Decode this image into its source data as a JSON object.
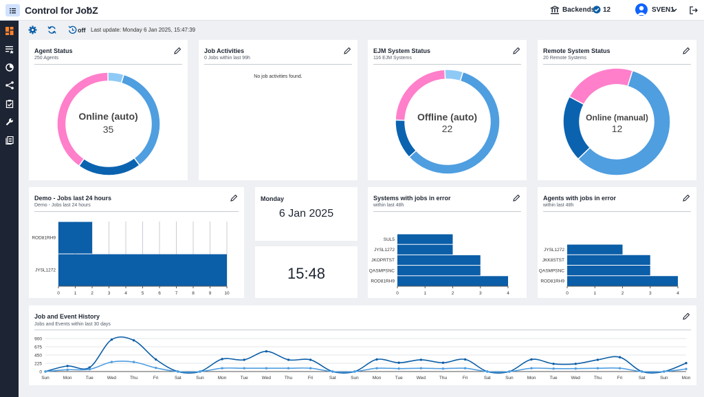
{
  "header": {
    "app_title": "Control for JobZ",
    "backends_label": "Backends",
    "backends_count": "12",
    "user": "SVEN1"
  },
  "toolbar": {
    "refresh_state": "off",
    "last_update": "Last update: Monday 6 Jan 2025, 15:47:39"
  },
  "sidebar": {
    "items": [
      "dashboard-icon",
      "favorites-list-icon",
      "monitor-icon",
      "workflow-icon",
      "checklist-icon",
      "wrench-icon",
      "documents-icon"
    ]
  },
  "cards": {
    "agent_status": {
      "title": "Agent Status",
      "subtitle": "250 Agents",
      "label": "Online (auto)",
      "value": "35"
    },
    "job_activities": {
      "title": "Job Activities",
      "subtitle": "0 Jobs within last 99h",
      "empty": "No job activities found."
    },
    "ejm_status": {
      "title": "EJM System Status",
      "subtitle": "116 EJM Systems",
      "label": "Offline (auto)",
      "value": "22"
    },
    "remote_status": {
      "title": "Remote System Status",
      "subtitle": "20 Remote Systems",
      "label": "Online (manual)",
      "value": "12"
    },
    "demo_jobs": {
      "title": "Demo - Jobs last 24 hours",
      "subtitle": "Demo - Jobs last 24 hours"
    },
    "day": {
      "title": "Monday",
      "date": "6 Jan 2025"
    },
    "clock": {
      "time": "15:48"
    },
    "systems_errors": {
      "title": "Systems with jobs in error",
      "subtitle": "within last 48h"
    },
    "agents_errors": {
      "title": "Agents with jobs in error",
      "subtitle": "within last 48h"
    },
    "history": {
      "title": "Job and Event History",
      "subtitle": "Jobs and Events within last 30 days"
    }
  },
  "colors": {
    "blue_light": "#4f9ee0",
    "blue_dark": "#0b63b0",
    "pink": "#ff7fcb",
    "sky": "#8fcaf7",
    "bar": "#0b5ea8",
    "sidebar": "#1d2433"
  },
  "chart_data": [
    {
      "id": "agent-status",
      "type": "pie",
      "labels": [
        "",
        "",
        "",
        ""
      ],
      "colors": [
        "#4f9ee0",
        "#0b63b0",
        "#ff7fcb",
        "#8fcaf7"
      ],
      "values": [
        35,
        20,
        40,
        5
      ]
    },
    {
      "id": "ejm-status",
      "type": "pie",
      "labels": [
        "",
        "",
        "",
        ""
      ],
      "colors": [
        "#4f9ee0",
        "#0b63b0",
        "#ff7fcb",
        "#8fcaf7"
      ],
      "values": [
        52,
        11,
        21,
        5
      ]
    },
    {
      "id": "remote-status",
      "type": "pie",
      "labels": [
        "",
        "",
        ""
      ],
      "colors": [
        "#4f9ee0",
        "#0b63b0",
        "#ff7fcb"
      ],
      "values": [
        58,
        20,
        22
      ]
    },
    {
      "id": "demo-jobs",
      "type": "bar",
      "orientation": "horizontal",
      "categories": [
        "ROD81RH9",
        "JYSL1272"
      ],
      "values": [
        2,
        10
      ],
      "xlim": [
        0,
        10
      ],
      "xticks": [
        0,
        1,
        2,
        3,
        4,
        5,
        6,
        7,
        8,
        9,
        10
      ],
      "grid": true
    },
    {
      "id": "systems-errors",
      "type": "bar",
      "orientation": "horizontal",
      "categories": [
        "SUL5",
        "JYSL1272",
        "JKOPRTST",
        "QASMPSNC",
        "ROD81RH9"
      ],
      "values": [
        2,
        2,
        3,
        3,
        4
      ],
      "xlim": [
        0,
        4
      ],
      "xticks": [
        0,
        1,
        2,
        3,
        4
      ]
    },
    {
      "id": "agents-errors",
      "type": "bar",
      "orientation": "horizontal",
      "categories": [
        "JYSL1272",
        "JKK8STST",
        "QASMPSNC",
        "ROD81RH9"
      ],
      "values": [
        2,
        3,
        3,
        4
      ],
      "xlim": [
        0,
        4
      ],
      "xticks": [
        0,
        1,
        2,
        3,
        4
      ]
    },
    {
      "id": "history",
      "type": "line",
      "x": [
        "Sun",
        "Mon",
        "Tue",
        "Wed",
        "Thu",
        "Fri",
        "Sat",
        "Sun",
        "Mon",
        "Tue",
        "Wed",
        "Thu",
        "Fri",
        "Sat",
        "Sun",
        "Mon",
        "Tue",
        "Wed",
        "Thu",
        "Fri",
        "Sat",
        "Sun",
        "Mon",
        "Tue",
        "Wed",
        "Thu",
        "Fri",
        "Sat",
        "Sun",
        "Mon"
      ],
      "yticks": [
        0,
        225,
        450,
        675,
        900
      ],
      "ylim": [
        0,
        900
      ],
      "series": [
        {
          "color": "#0b5ea8",
          "values": [
            0,
            150,
            110,
            870,
            850,
            330,
            0,
            0,
            340,
            320,
            550,
            320,
            320,
            0,
            0,
            330,
            240,
            320,
            240,
            330,
            0,
            0,
            330,
            210,
            210,
            320,
            390,
            0,
            0,
            230
          ]
        },
        {
          "color": "#4f9ee0",
          "values": [
            0,
            50,
            60,
            260,
            260,
            100,
            0,
            0,
            90,
            90,
            90,
            90,
            90,
            0,
            0,
            90,
            80,
            90,
            80,
            90,
            0,
            0,
            90,
            80,
            80,
            90,
            90,
            0,
            0,
            70
          ]
        }
      ]
    }
  ]
}
